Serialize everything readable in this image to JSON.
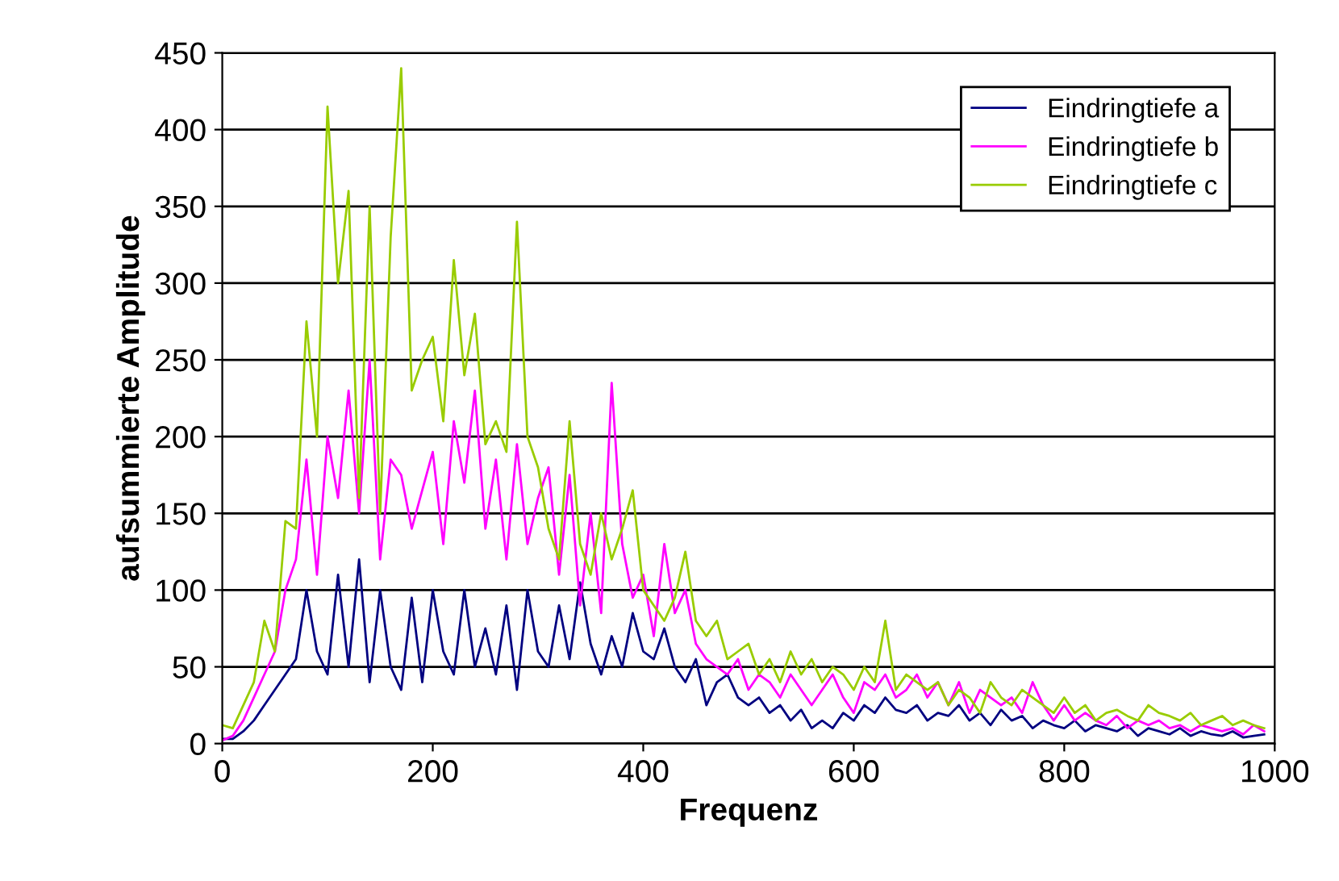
{
  "chart_data": {
    "type": "line",
    "xlabel": "Frequenz",
    "ylabel": "aufsummierte Amplitude",
    "x": [
      0,
      10,
      20,
      30,
      40,
      50,
      60,
      70,
      80,
      90,
      100,
      110,
      120,
      130,
      140,
      150,
      160,
      170,
      180,
      190,
      200,
      210,
      220,
      230,
      240,
      250,
      260,
      270,
      280,
      290,
      300,
      310,
      320,
      330,
      340,
      350,
      360,
      370,
      380,
      390,
      400,
      410,
      420,
      430,
      440,
      450,
      460,
      470,
      480,
      490,
      500,
      510,
      520,
      530,
      540,
      550,
      560,
      570,
      580,
      590,
      600,
      610,
      620,
      630,
      640,
      650,
      660,
      670,
      680,
      690,
      700,
      710,
      720,
      730,
      740,
      750,
      760,
      770,
      780,
      790,
      800,
      810,
      820,
      830,
      840,
      850,
      860,
      870,
      880,
      890,
      900,
      910,
      920,
      930,
      940,
      950,
      960,
      970,
      980,
      990
    ],
    "series": [
      {
        "name": "Eindringtiefe a",
        "color": "#000080",
        "values": [
          3,
          3,
          8,
          15,
          25,
          35,
          45,
          55,
          100,
          60,
          45,
          110,
          50,
          120,
          40,
          100,
          50,
          35,
          95,
          40,
          100,
          60,
          45,
          100,
          50,
          75,
          45,
          90,
          35,
          100,
          60,
          50,
          90,
          55,
          105,
          65,
          45,
          70,
          50,
          85,
          60,
          55,
          75,
          50,
          40,
          55,
          25,
          40,
          45,
          30,
          25,
          30,
          20,
          25,
          15,
          22,
          10,
          15,
          10,
          20,
          15,
          25,
          20,
          30,
          22,
          20,
          25,
          15,
          20,
          18,
          25,
          15,
          20,
          12,
          22,
          15,
          18,
          10,
          15,
          12,
          10,
          15,
          8,
          12,
          10,
          8,
          12,
          5,
          10,
          8,
          6,
          10,
          5,
          8,
          6,
          5,
          8,
          4,
          5,
          6
        ]
      },
      {
        "name": "Eindringtiefe b",
        "color": "#ff00ff",
        "values": [
          2,
          5,
          15,
          30,
          45,
          60,
          100,
          120,
          185,
          110,
          200,
          160,
          230,
          150,
          250,
          120,
          185,
          175,
          140,
          165,
          190,
          130,
          210,
          170,
          230,
          140,
          185,
          120,
          195,
          130,
          160,
          180,
          110,
          175,
          90,
          150,
          85,
          235,
          130,
          95,
          110,
          70,
          130,
          85,
          100,
          65,
          55,
          50,
          45,
          55,
          35,
          45,
          40,
          30,
          45,
          35,
          25,
          35,
          45,
          30,
          20,
          40,
          35,
          45,
          30,
          35,
          45,
          30,
          40,
          25,
          40,
          20,
          35,
          30,
          25,
          30,
          20,
          40,
          25,
          15,
          25,
          15,
          20,
          15,
          12,
          18,
          10,
          15,
          12,
          15,
          10,
          12,
          8,
          12,
          10,
          8,
          10,
          6,
          12,
          8
        ]
      },
      {
        "name": "Eindringtiefe c",
        "color": "#99cc00",
        "values": [
          12,
          10,
          25,
          40,
          80,
          60,
          145,
          140,
          275,
          200,
          415,
          300,
          360,
          160,
          350,
          150,
          330,
          440,
          230,
          250,
          265,
          210,
          315,
          240,
          280,
          195,
          210,
          190,
          340,
          200,
          180,
          140,
          120,
          210,
          130,
          110,
          150,
          120,
          140,
          165,
          100,
          90,
          80,
          95,
          125,
          80,
          70,
          80,
          55,
          60,
          65,
          45,
          55,
          40,
          60,
          45,
          55,
          40,
          50,
          45,
          35,
          50,
          40,
          80,
          35,
          45,
          40,
          35,
          40,
          25,
          35,
          30,
          20,
          40,
          30,
          25,
          35,
          30,
          25,
          20,
          30,
          20,
          25,
          15,
          20,
          22,
          18,
          15,
          25,
          20,
          18,
          15,
          20,
          12,
          15,
          18,
          12,
          15,
          12,
          10
        ]
      }
    ],
    "xlim": [
      0,
      1000
    ],
    "xticks": [
      0,
      200,
      400,
      600,
      800,
      1000
    ],
    "ylim": [
      0,
      450
    ],
    "yticks": [
      0,
      50,
      100,
      150,
      200,
      250,
      300,
      350,
      400,
      450
    ],
    "grid": "y",
    "legend": "top right",
    "marker": "none",
    "line_style": "solid"
  }
}
